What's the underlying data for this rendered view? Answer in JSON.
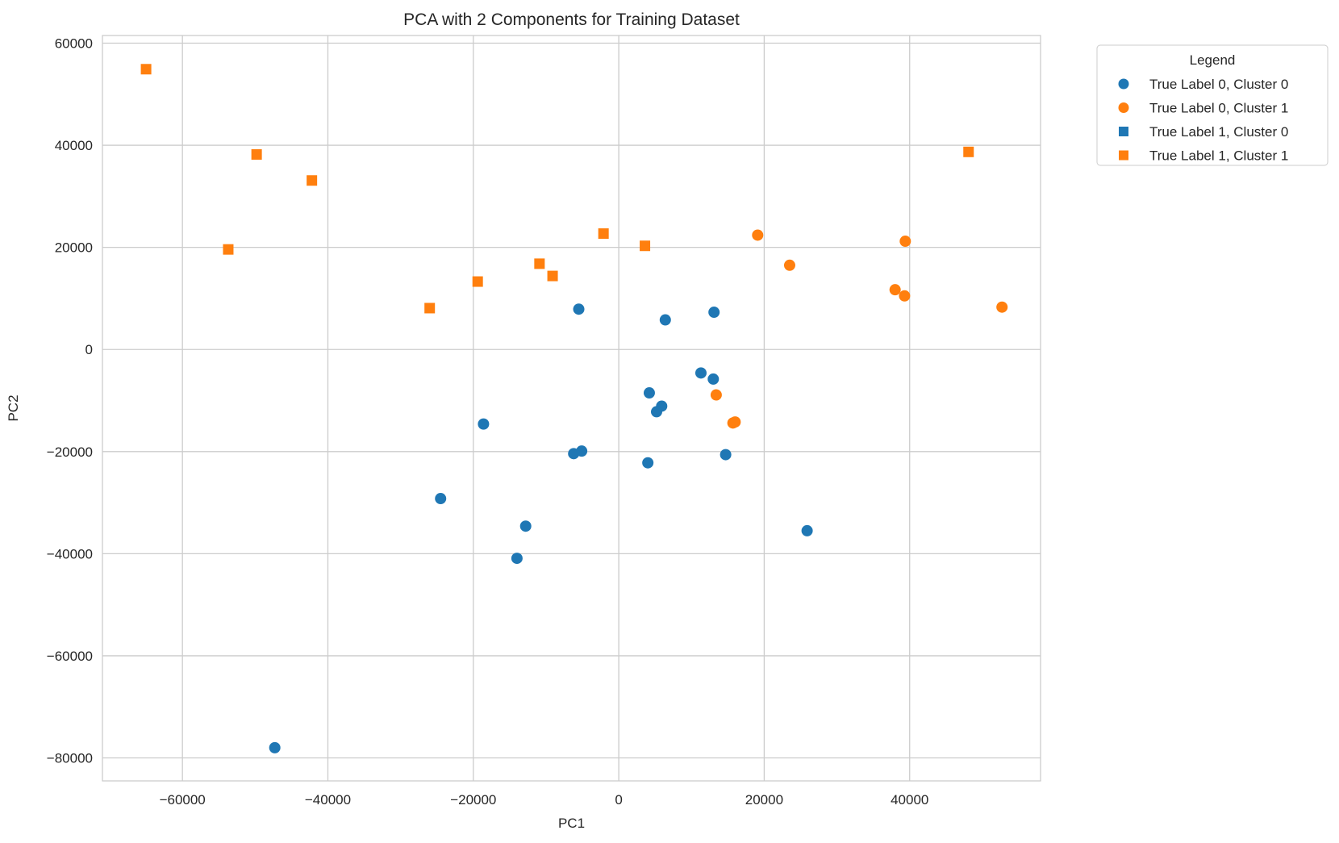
{
  "chart_data": {
    "type": "scatter",
    "title": "PCA with 2 Components for Training Dataset",
    "xlabel": "PC1",
    "ylabel": "PC2",
    "xlim": [
      -71000,
      58000
    ],
    "ylim": [
      -84500,
      61500
    ],
    "xticks": [
      -60000,
      -40000,
      -20000,
      0,
      20000,
      40000
    ],
    "yticks": [
      60000,
      40000,
      20000,
      0,
      -20000,
      -40000,
      -60000,
      -80000
    ],
    "grid": true,
    "legend": {
      "title": "Legend",
      "placement": "outside-top-right"
    },
    "colors": {
      "cluster0": "#1f77b4",
      "cluster1": "#ff7f0e"
    },
    "series": [
      {
        "name": "True Label 0, Cluster 0",
        "marker": "circle",
        "color": "#1f77b4",
        "points": [
          [
            -5500,
            7900
          ],
          [
            6400,
            5800
          ],
          [
            13100,
            7300
          ],
          [
            11300,
            -4600
          ],
          [
            13000,
            -5800
          ],
          [
            4200,
            -8500
          ],
          [
            5900,
            -11100
          ],
          [
            5200,
            -12200
          ],
          [
            -18600,
            -14600
          ],
          [
            -6200,
            -20400
          ],
          [
            -5100,
            -19900
          ],
          [
            14700,
            -20600
          ],
          [
            4000,
            -22200
          ],
          [
            -24500,
            -29200
          ],
          [
            -12800,
            -34600
          ],
          [
            25900,
            -35500
          ],
          [
            -14000,
            -40900
          ],
          [
            -47300,
            -78000
          ]
        ]
      },
      {
        "name": "True Label 0, Cluster 1",
        "marker": "circle",
        "color": "#ff7f0e",
        "points": [
          [
            19100,
            22400
          ],
          [
            23500,
            16500
          ],
          [
            39400,
            21200
          ],
          [
            38000,
            11700
          ],
          [
            39300,
            10500
          ],
          [
            52700,
            8300
          ],
          [
            13400,
            -8900
          ],
          [
            15700,
            -14400
          ],
          [
            16000,
            -14200
          ]
        ]
      },
      {
        "name": "True Label 1, Cluster 0",
        "marker": "square",
        "color": "#1f77b4",
        "points": []
      },
      {
        "name": "True Label 1, Cluster 1",
        "marker": "square",
        "color": "#ff7f0e",
        "points": [
          [
            -65000,
            54900
          ],
          [
            -49800,
            38200
          ],
          [
            -42200,
            33100
          ],
          [
            -53700,
            19600
          ],
          [
            -2100,
            22700
          ],
          [
            3600,
            20300
          ],
          [
            -10900,
            16800
          ],
          [
            -9100,
            14400
          ],
          [
            -19400,
            13300
          ],
          [
            -26000,
            8100
          ],
          [
            48100,
            38700
          ]
        ]
      }
    ]
  }
}
